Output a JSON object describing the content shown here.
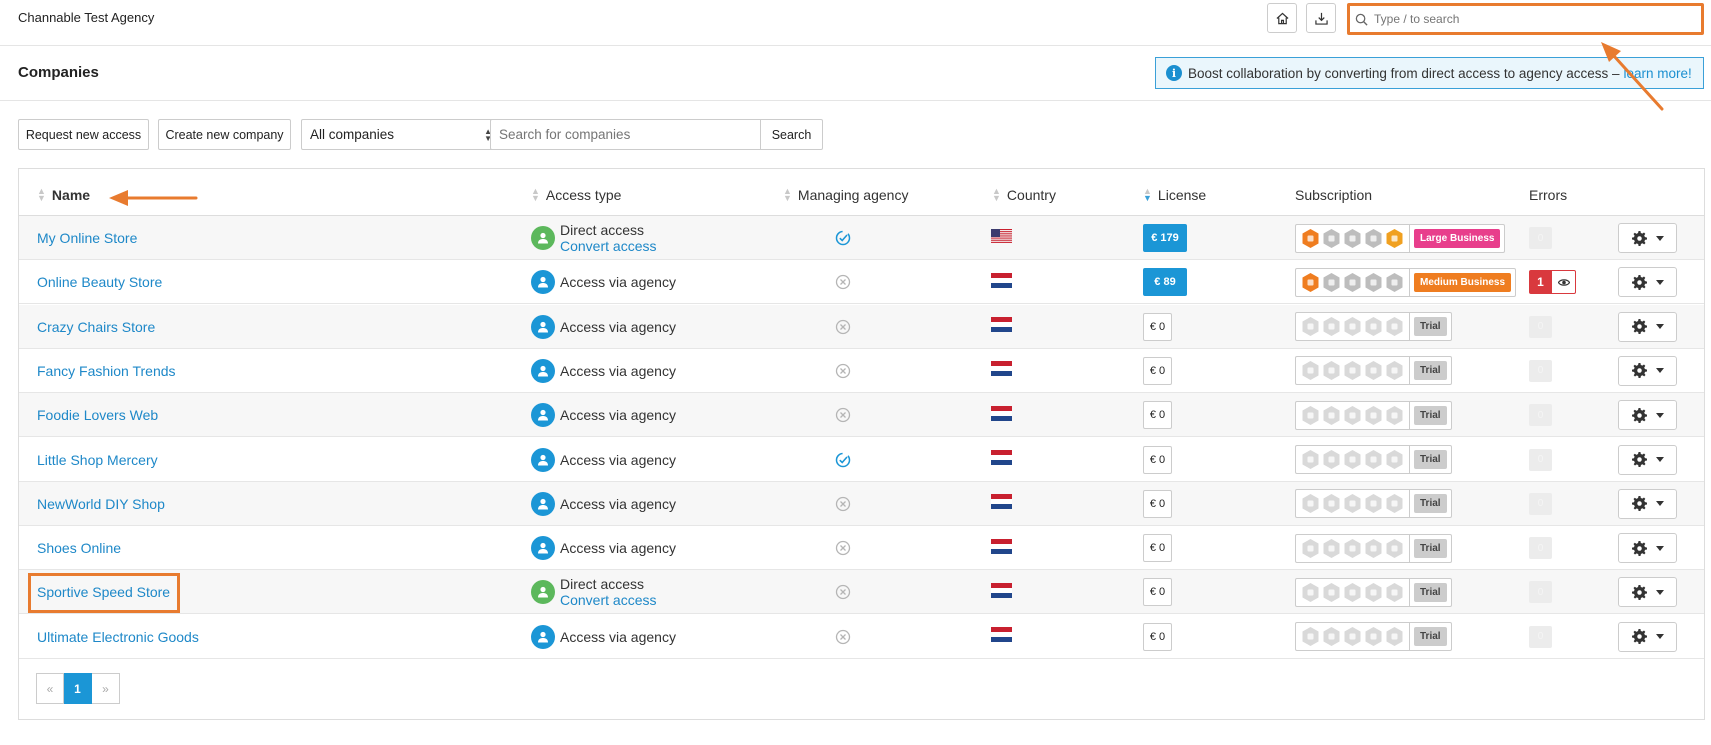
{
  "header": {
    "agency_name": "Channable Test Agency",
    "search_placeholder": "Type / to search"
  },
  "page": {
    "title": "Companies",
    "banner_text": "Boost collaboration by converting from direct access to agency access –",
    "banner_link": "learn more!"
  },
  "toolbar": {
    "request_access_label": "Request new access",
    "create_company_label": "Create new company",
    "filter_selected": "All companies",
    "search_placeholder": "Search for companies",
    "search_button_label": "Search"
  },
  "table": {
    "columns": {
      "name": "Name",
      "access_type": "Access type",
      "managing_agency": "Managing agency",
      "country": "Country",
      "license": "License",
      "subscription": "Subscription",
      "errors": "Errors"
    },
    "rows": [
      {
        "name": "My Online Store",
        "access": "Direct access",
        "convert": "Convert access",
        "managed": true,
        "country": "US",
        "license": "€ 179",
        "plan": "Large Business",
        "errors": "0"
      },
      {
        "name": "Online Beauty Store",
        "access": "Access via agency",
        "managed": false,
        "country": "NL",
        "license": "€ 89",
        "plan": "Medium Business",
        "errors": "1"
      },
      {
        "name": "Crazy Chairs Store",
        "access": "Access via agency",
        "managed": false,
        "country": "NL",
        "license": "€ 0",
        "plan": "Trial",
        "errors": "0"
      },
      {
        "name": "Fancy Fashion Trends",
        "access": "Access via agency",
        "managed": false,
        "country": "NL",
        "license": "€ 0",
        "plan": "Trial",
        "errors": "0"
      },
      {
        "name": "Foodie Lovers Web",
        "access": "Access via agency",
        "managed": false,
        "country": "NL",
        "license": "€ 0",
        "plan": "Trial",
        "errors": "0"
      },
      {
        "name": "Little Shop Mercery",
        "access": "Access via agency",
        "managed": true,
        "country": "NL",
        "license": "€ 0",
        "plan": "Trial",
        "errors": "0"
      },
      {
        "name": "NewWorld DIY Shop",
        "access": "Access via agency",
        "managed": false,
        "country": "NL",
        "license": "€ 0",
        "plan": "Trial",
        "errors": "0"
      },
      {
        "name": "Shoes Online",
        "access": "Access via agency",
        "managed": false,
        "country": "NL",
        "license": "€ 0",
        "plan": "Trial",
        "errors": "0"
      },
      {
        "name": "Sportive Speed Store",
        "access": "Direct access",
        "convert": "Convert access",
        "managed": false,
        "country": "NL",
        "license": "€ 0",
        "plan": "Trial",
        "errors": "0"
      },
      {
        "name": "Ultimate Electronic Goods",
        "access": "Access via agency",
        "managed": false,
        "country": "NL",
        "license": "€ 0",
        "plan": "Trial",
        "errors": "0"
      }
    ]
  },
  "pagination": {
    "prev": "«",
    "current": "1",
    "next": "»"
  },
  "colors": {
    "accent": "#1b96d6",
    "annotation": "#e87b2f",
    "large_business": "#e83e8c",
    "medium_business": "#ef7d20",
    "error": "#d9393e"
  }
}
